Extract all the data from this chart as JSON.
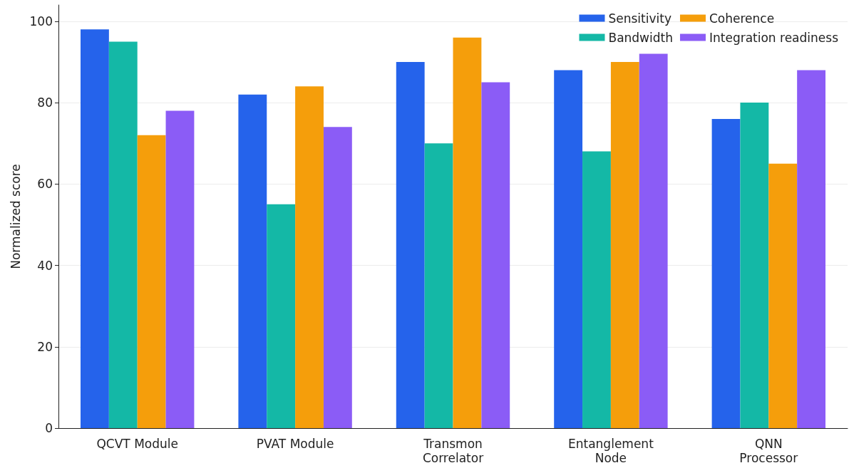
{
  "chart_data": {
    "type": "bar",
    "ylabel": "Normalized score",
    "categories": [
      "QCVT Module",
      "PVAT Module",
      "Transmon\nCorrelator",
      "Entanglement\nNode",
      "QNN\nProcessor"
    ],
    "series": [
      {
        "name": "Sensitivity",
        "color": "#2563eb",
        "values": [
          98,
          82,
          90,
          88,
          76
        ]
      },
      {
        "name": "Bandwidth",
        "color": "#14b8a6",
        "values": [
          95,
          55,
          70,
          68,
          80
        ]
      },
      {
        "name": "Coherence",
        "color": "#f59e0b",
        "values": [
          72,
          84,
          96,
          90,
          65
        ]
      },
      {
        "name": "Integration readiness",
        "color": "#8b5cf6",
        "values": [
          78,
          74,
          85,
          92,
          88
        ]
      }
    ],
    "ylim": [
      0,
      104
    ],
    "yticks": [
      0,
      20,
      40,
      60,
      80,
      100
    ],
    "grid": "y",
    "legend": "top right"
  }
}
